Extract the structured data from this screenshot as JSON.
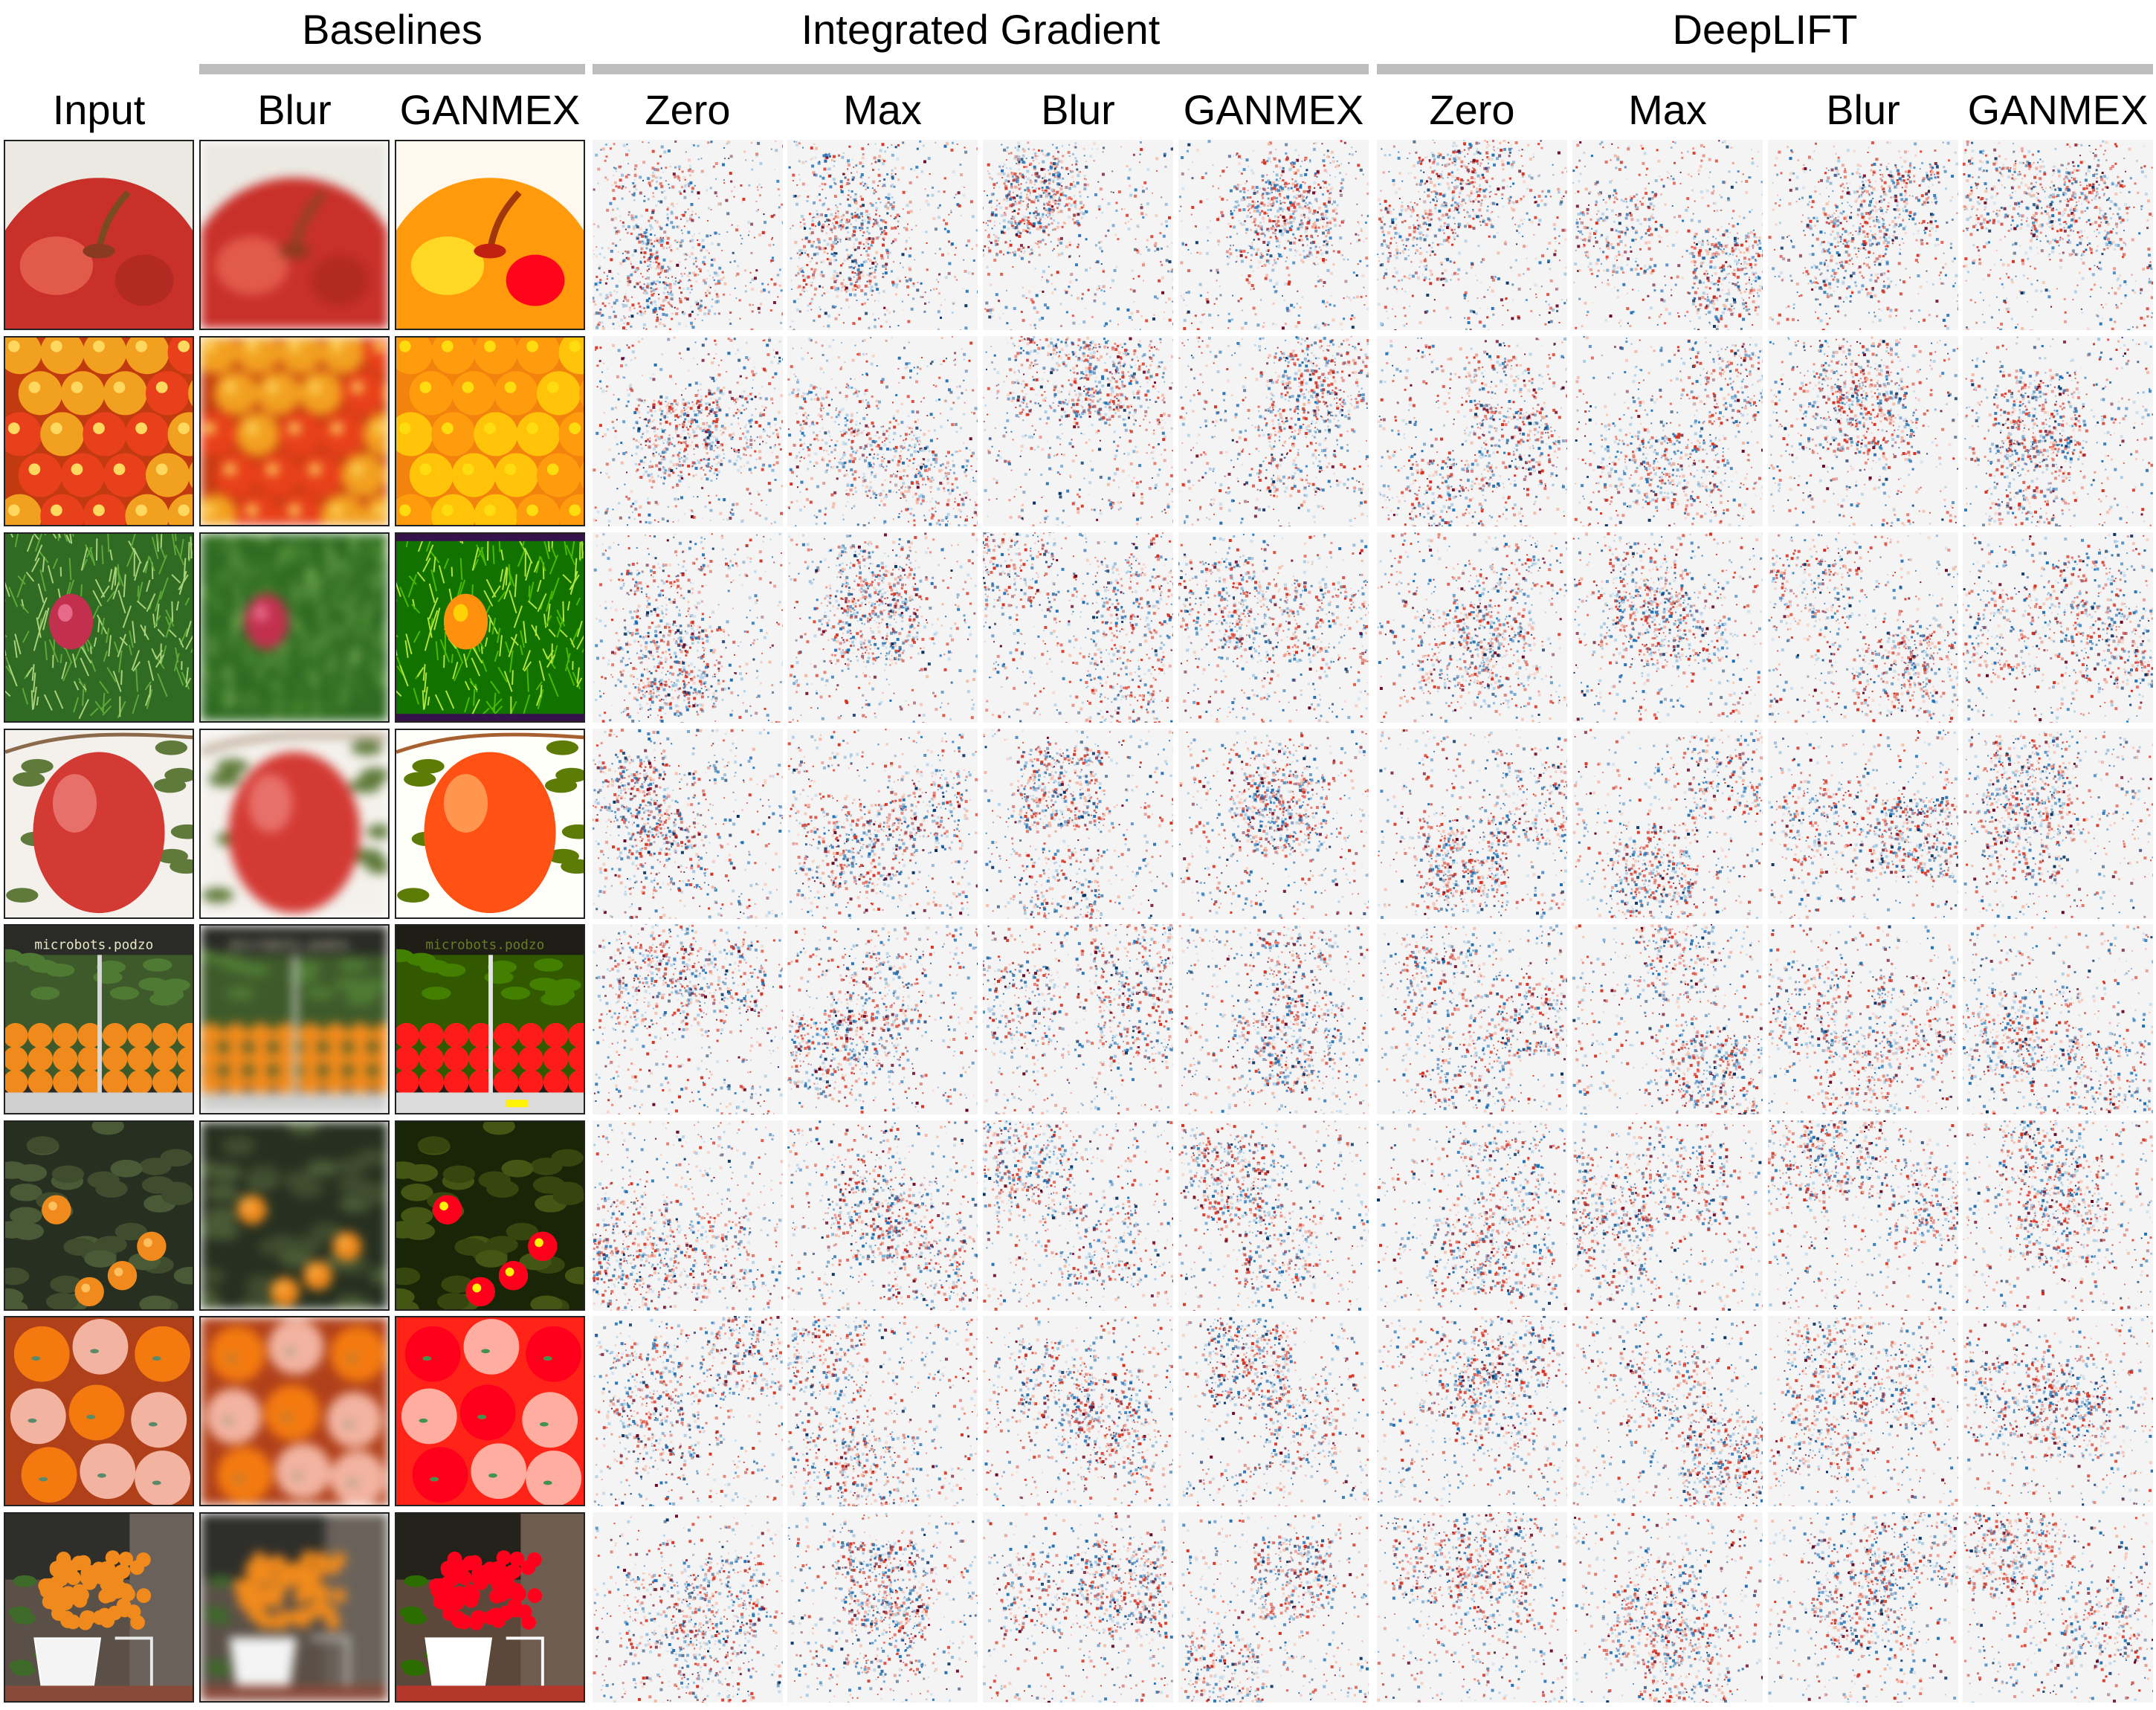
{
  "column_groups": [
    {
      "title": "Baselines"
    },
    {
      "title": "Integrated Gradient"
    },
    {
      "title": "DeepLIFT"
    }
  ],
  "column_headers": [
    "Input",
    "Blur",
    "GANMEX",
    "Zero",
    "Max",
    "Blur",
    "GANMEX",
    "Zero",
    "Max",
    "Blur",
    "GANMEX"
  ],
  "rows": [
    {
      "scene": "apple-closeup"
    },
    {
      "scene": "apple-pile"
    },
    {
      "scene": "apple-on-grass"
    },
    {
      "scene": "apple-on-branch"
    },
    {
      "scene": "orange-market-stall",
      "overlay_text": "microbots.podzo"
    },
    {
      "scene": "orange-tree"
    },
    {
      "scene": "orange-crate"
    },
    {
      "scene": "orange-cart-street"
    }
  ],
  "colors": {
    "positive_attribution": "#d7301f",
    "negative_attribution": "#1f6fb4",
    "strong_positive": "#67001f",
    "strong_negative": "#053061",
    "attribution_background": "#f5f4f4",
    "group_bar": "#bdbdbd"
  }
}
